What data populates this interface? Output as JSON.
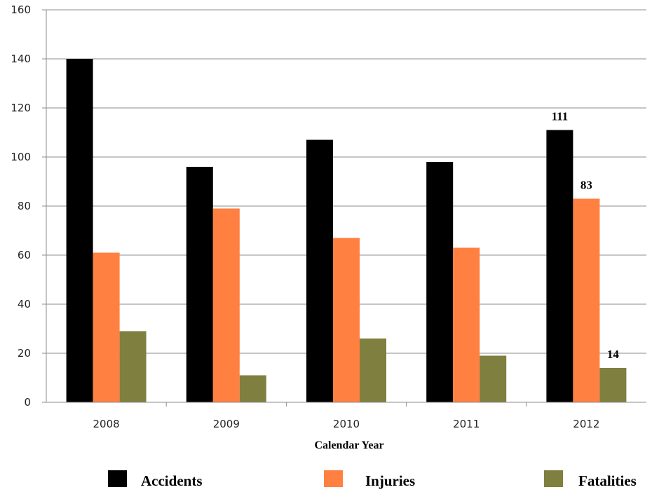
{
  "chart_data": {
    "type": "bar",
    "categories": [
      "2008",
      "2009",
      "2010",
      "2011",
      "2012"
    ],
    "series": [
      {
        "name": "Accidents",
        "values": [
          140,
          96,
          107,
          98,
          111
        ],
        "color": "#000000"
      },
      {
        "name": "Injuries",
        "values": [
          61,
          79,
          67,
          63,
          83
        ],
        "color": "#FF8040"
      },
      {
        "name": "Fatalities",
        "values": [
          29,
          11,
          26,
          19,
          14
        ],
        "color": "#7F7F3F"
      }
    ],
    "title": "",
    "xlabel": "Calendar Year",
    "ylabel": "",
    "ylim": [
      0,
      160
    ],
    "yticks": [
      0,
      20,
      40,
      60,
      80,
      100,
      120,
      140,
      160
    ],
    "grid": true,
    "legend_position": "bottom",
    "data_labels": [
      {
        "series": "Accidents",
        "category": "2012",
        "text": "111"
      },
      {
        "series": "Injuries",
        "category": "2012",
        "text": "83"
      },
      {
        "series": "Fatalities",
        "category": "2012",
        "text": "14"
      }
    ]
  }
}
